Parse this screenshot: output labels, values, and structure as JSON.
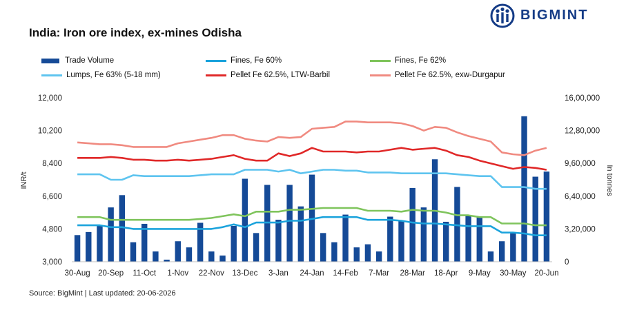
{
  "header": {
    "title": "India: Iron ore index, ex-mines Odisha",
    "logo_text": "BIGMINT"
  },
  "footer": {
    "source": "Source: BigMint | Last updated: 20-06-2026"
  },
  "colors": {
    "trade_volume": "#154a97",
    "fines_60": "#1ba3dc",
    "fines_62": "#7fc45c",
    "lumps_63": "#5ec4ef",
    "pellet_barbil": "#e02828",
    "pellet_durgapur": "#f08a80",
    "logo": "#143b86"
  },
  "chart_data": {
    "type": "bar+line",
    "title": "India: Iron ore index, ex-mines Odisha",
    "ylabel": "INR/t",
    "y2label": "In tonnes",
    "ylim": [
      3000,
      12000
    ],
    "y2lim": [
      0,
      1600000
    ],
    "yticks": [
      "3,000",
      "4,800",
      "6,600",
      "8,400",
      "10,200",
      "12,000"
    ],
    "y2ticks": [
      "0",
      "3,20,000",
      "6,40,000",
      "9,60,000",
      "12,80,000",
      "16,00,000"
    ],
    "xtick_labels": [
      "30-Aug",
      "20-Sep",
      "11-Oct",
      "1-Nov",
      "22-Nov",
      "13-Dec",
      "3-Jan",
      "24-Jan",
      "14-Feb",
      "7-Mar",
      "28-Mar",
      "18-Apr",
      "9-May",
      "30-May",
      "20-Jun"
    ],
    "legend_position": "top",
    "grid": false,
    "bar_series": {
      "name": "Trade Volume",
      "values": [
        260000,
        290000,
        350000,
        530000,
        650000,
        190000,
        370000,
        100000,
        20000,
        200000,
        140000,
        380000,
        100000,
        60000,
        350000,
        810000,
        280000,
        750000,
        410000,
        750000,
        540000,
        850000,
        280000,
        190000,
        460000,
        140000,
        170000,
        100000,
        440000,
        400000,
        720000,
        530000,
        1000000,
        390000,
        730000,
        450000,
        440000,
        100000,
        200000,
        280000,
        1420000,
        830000,
        880000
      ]
    },
    "line_series": [
      {
        "name": "Fines, Fe 60%",
        "values": [
          5000,
          5000,
          5000,
          4900,
          4900,
          4800,
          4800,
          4800,
          4800,
          4800,
          4800,
          4800,
          4800,
          4900,
          5050,
          4900,
          5150,
          5150,
          5150,
          5250,
          5250,
          5350,
          5450,
          5450,
          5450,
          5450,
          5300,
          5300,
          5300,
          5250,
          5150,
          5100,
          5100,
          5050,
          5000,
          4950,
          4950,
          4950,
          4600,
          4600,
          4550,
          4450,
          4450
        ]
      },
      {
        "name": "Fines, Fe 62%",
        "values": [
          5450,
          5450,
          5450,
          5300,
          5300,
          5300,
          5300,
          5300,
          5300,
          5300,
          5300,
          5350,
          5400,
          5500,
          5600,
          5500,
          5750,
          5750,
          5750,
          5850,
          5850,
          5900,
          5950,
          5950,
          5950,
          5950,
          5800,
          5800,
          5800,
          5750,
          5850,
          5800,
          5800,
          5700,
          5550,
          5550,
          5450,
          5450,
          5100,
          5100,
          5100,
          5000,
          5000
        ]
      },
      {
        "name": "Lumps, Fe 63% (5-18 mm)",
        "values": [
          7800,
          7800,
          7800,
          7500,
          7500,
          7750,
          7700,
          7700,
          7700,
          7700,
          7700,
          7750,
          7800,
          7800,
          7800,
          8050,
          8050,
          8050,
          7950,
          8050,
          7850,
          7950,
          8050,
          8050,
          8000,
          8000,
          7900,
          7900,
          7900,
          7850,
          7850,
          7850,
          7850,
          7850,
          7800,
          7750,
          7700,
          7700,
          7100,
          7100,
          7100,
          7000,
          7000
        ]
      },
      {
        "name": "Pellet Fe 62.5%, LTW-Barbil",
        "values": [
          8700,
          8700,
          8700,
          8750,
          8700,
          8600,
          8600,
          8550,
          8550,
          8600,
          8550,
          8600,
          8650,
          8750,
          8850,
          8650,
          8550,
          8550,
          8950,
          8800,
          8950,
          9250,
          9050,
          9050,
          9050,
          9000,
          9050,
          9050,
          9150,
          9250,
          9150,
          9200,
          9250,
          9100,
          8850,
          8750,
          8550,
          8400,
          8250,
          8100,
          8200,
          8150,
          8050
        ]
      },
      {
        "name": "Pellet Fe  62.5%, exw-Durgapur",
        "values": [
          9550,
          9500,
          9450,
          9450,
          9400,
          9300,
          9300,
          9300,
          9300,
          9500,
          9600,
          9700,
          9800,
          9950,
          9950,
          9750,
          9650,
          9600,
          9850,
          9800,
          9850,
          10300,
          10350,
          10400,
          10700,
          10700,
          10650,
          10650,
          10650,
          10600,
          10450,
          10200,
          10400,
          10350,
          10100,
          9900,
          9750,
          9600,
          9000,
          8900,
          8850,
          9100,
          9250
        ]
      }
    ]
  }
}
